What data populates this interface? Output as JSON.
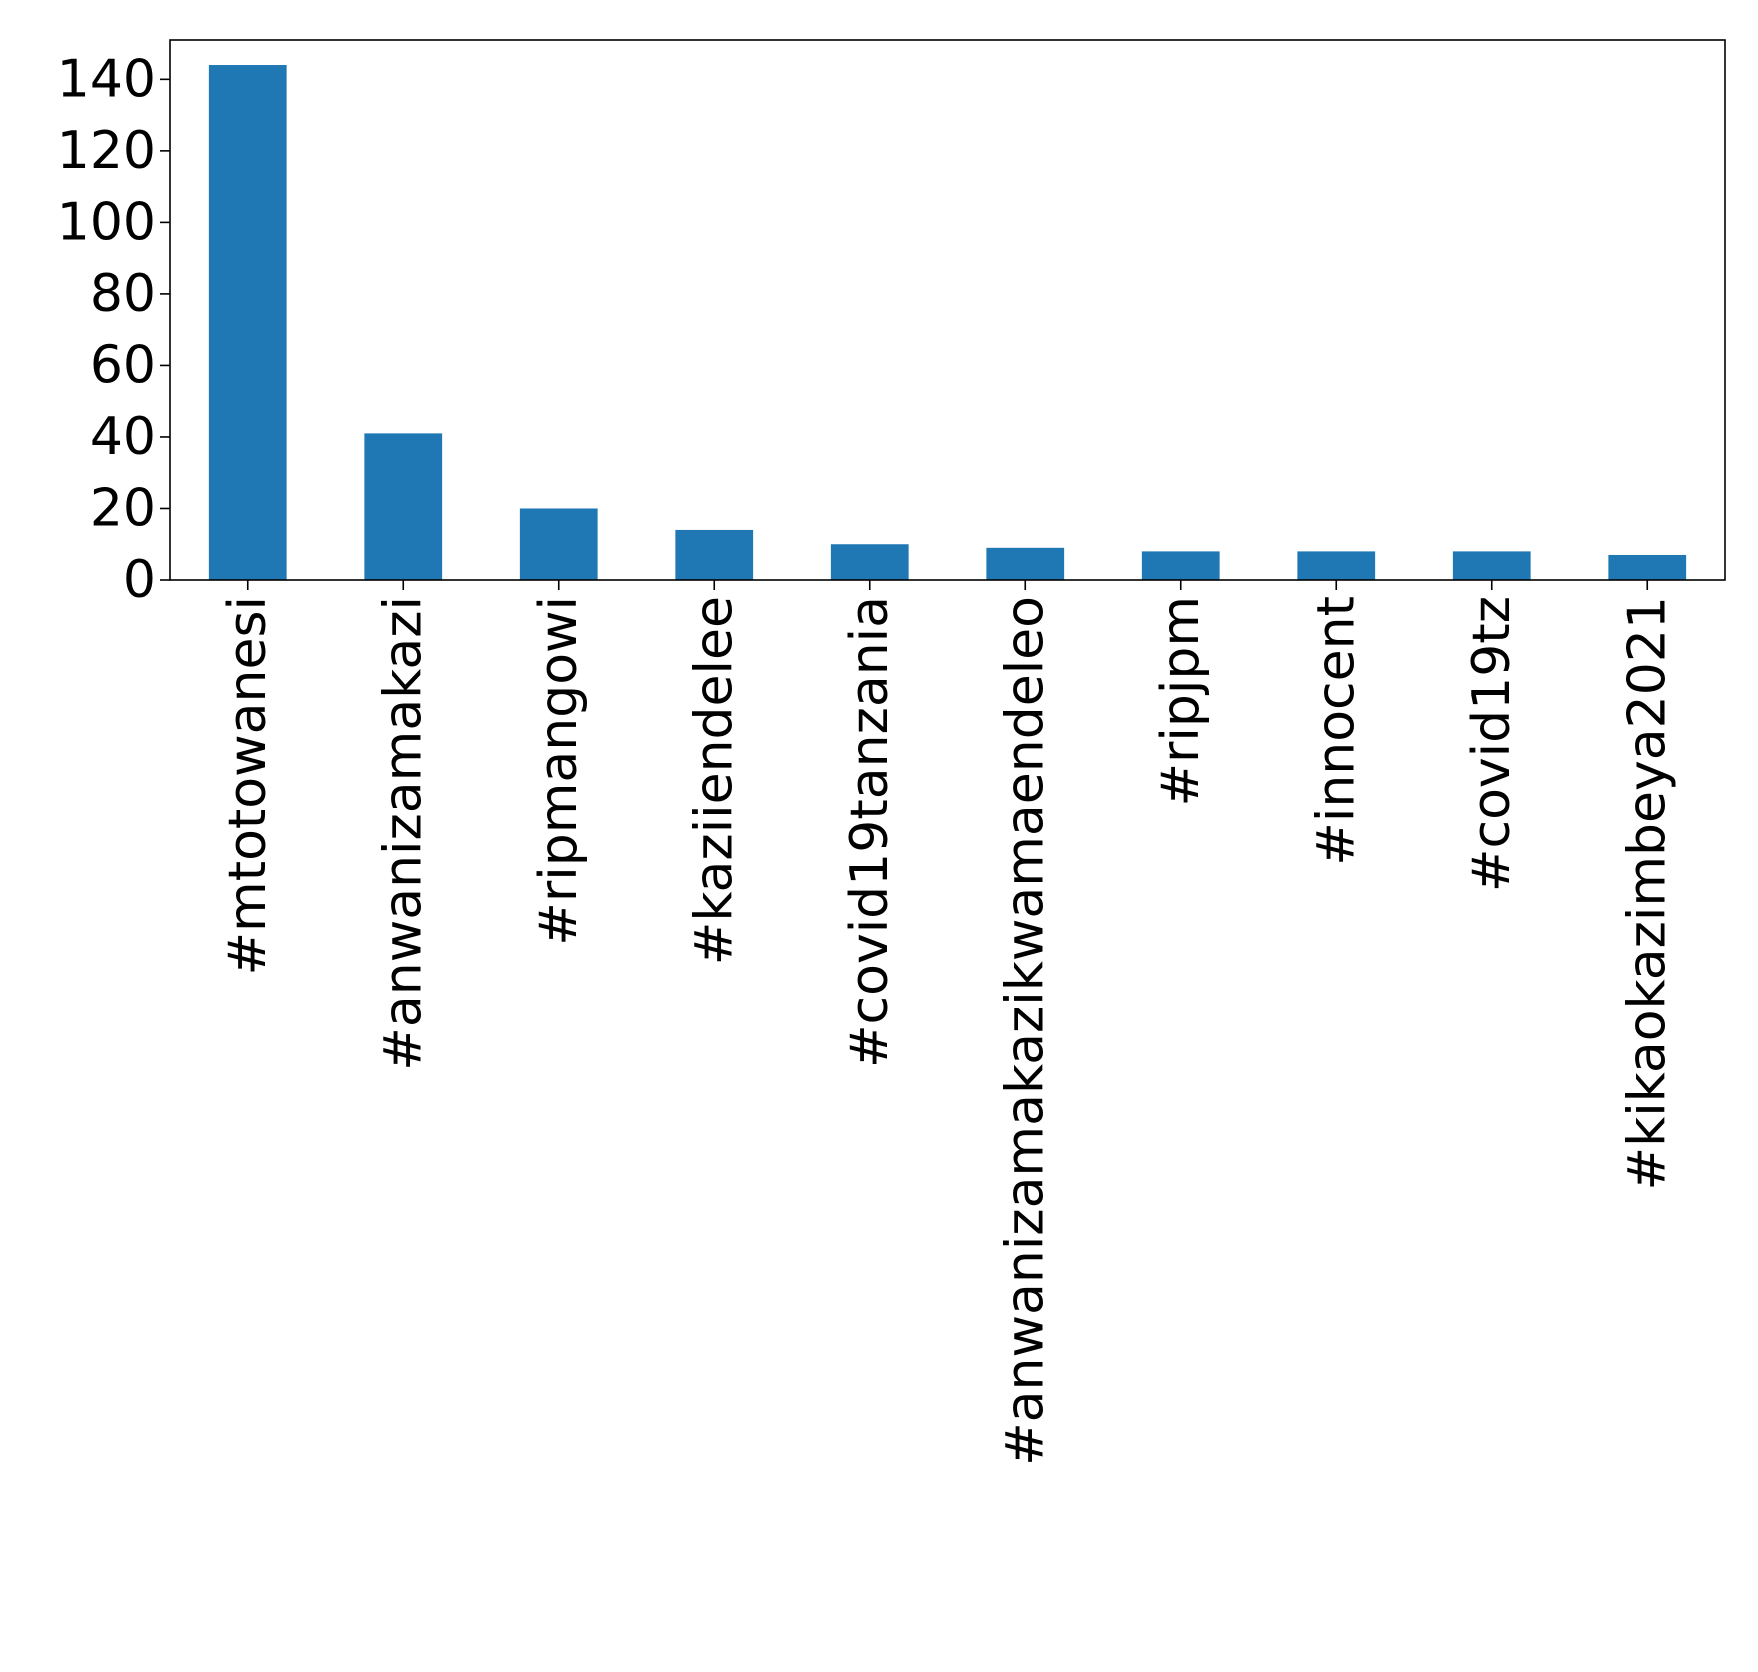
{
  "chart_data": {
    "type": "bar",
    "categories": [
      "#mtotowanesi",
      "#anwanizamakazi",
      "#ripmangowi",
      "#kaziiendelee",
      "#covid19tanzania",
      "#anwanizamakazikwamaendeleo",
      "#ripjpm",
      "#innocent",
      "#covid19tz",
      "#kikaokazimbeya2021"
    ],
    "values": [
      144,
      41,
      20,
      14,
      10,
      9,
      8,
      8,
      8,
      7
    ],
    "yticks": [
      "0",
      "20",
      "40",
      "60",
      "80",
      "100",
      "120",
      "140"
    ],
    "ylim": [
      0,
      151
    ],
    "bar_color": "#1f77b4",
    "title": "",
    "xlabel": "",
    "ylabel": "",
    "grid": false,
    "legend": false
  }
}
